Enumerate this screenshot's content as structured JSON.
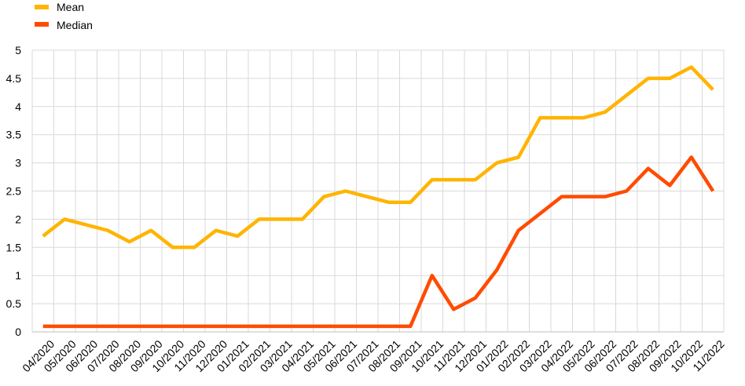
{
  "chart_data": {
    "type": "line",
    "categories": [
      "04/2020",
      "05/2020",
      "06/2020",
      "07/2020",
      "08/2020",
      "09/2020",
      "10/2020",
      "11/2020",
      "12/2020",
      "01/2021",
      "02/2021",
      "03/2021",
      "04/2021",
      "05/2021",
      "06/2021",
      "07/2021",
      "08/2021",
      "09/2021",
      "10/2021",
      "11/2021",
      "12/2021",
      "01/2022",
      "02/2022",
      "03/2022",
      "04/2022",
      "05/2022",
      "06/2022",
      "07/2022",
      "08/2022",
      "09/2022",
      "10/2022",
      "11/2022"
    ],
    "series": [
      {
        "name": "Mean",
        "color": "#FFB400",
        "values": [
          1.7,
          2.0,
          1.9,
          1.8,
          1.6,
          1.8,
          1.5,
          1.5,
          1.8,
          1.7,
          2.0,
          2.0,
          2.0,
          2.4,
          2.5,
          2.4,
          2.3,
          2.3,
          2.7,
          2.7,
          2.7,
          3.0,
          3.1,
          3.8,
          3.8,
          3.8,
          3.9,
          4.2,
          4.5,
          4.5,
          4.7,
          4.3
        ]
      },
      {
        "name": "Median",
        "color": "#FF4B00",
        "values": [
          0.1,
          0.1,
          0.1,
          0.1,
          0.1,
          0.1,
          0.1,
          0.1,
          0.1,
          0.1,
          0.1,
          0.1,
          0.1,
          0.1,
          0.1,
          0.1,
          0.1,
          0.1,
          1.0,
          0.4,
          0.6,
          1.1,
          1.8,
          2.1,
          2.4,
          2.4,
          2.4,
          2.5,
          2.9,
          2.6,
          3.1,
          2.5
        ]
      }
    ],
    "y_ticks": [
      "0",
      "0.5",
      "1",
      "1.5",
      "2",
      "2.5",
      "3",
      "3.5",
      "4",
      "4.5",
      "5"
    ],
    "ylim": [
      0,
      5
    ],
    "grid": true,
    "legend_position": "top-left",
    "title": "",
    "xlabel": "",
    "ylabel": "",
    "gridline_color": "#D9D9D9",
    "text_color": "#000000"
  }
}
